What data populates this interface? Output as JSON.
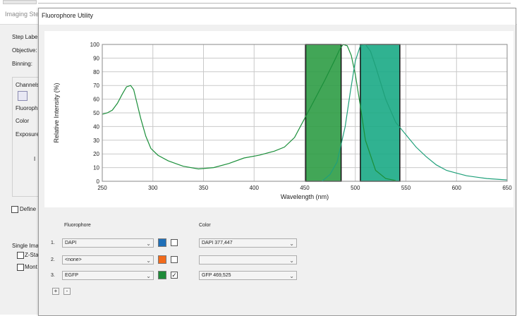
{
  "background_window": {
    "title": "Imaging Ste",
    "labels": [
      "Step Label",
      "Objective:",
      "Binning:",
      "Channels",
      "Fluoroph",
      "Color",
      "Exposure",
      "I",
      "Define I",
      "Single Ima",
      "Z-Sta",
      "Mont"
    ]
  },
  "dialog": {
    "title": "Fluorophore Utility"
  },
  "chart_data": {
    "type": "line",
    "xlabel": "Wavelength (nm)",
    "ylabel": "Relative Intensity (%)",
    "xlim": [
      250,
      650
    ],
    "ylim": [
      0,
      100
    ],
    "x_ticks": [
      250,
      300,
      350,
      400,
      450,
      500,
      550,
      600,
      650
    ],
    "y_ticks": [
      0,
      10,
      20,
      30,
      40,
      50,
      60,
      70,
      80,
      90,
      100
    ],
    "grid": true,
    "series": [
      {
        "color": "#1b8f3a",
        "x": [
          250,
          255,
          260,
          265,
          270,
          274,
          278,
          281,
          284,
          288,
          293,
          298,
          305,
          315,
          330,
          345,
          360,
          375,
          390,
          405,
          420,
          430,
          440,
          450,
          460,
          470,
          480,
          485,
          488,
          492,
          496,
          500,
          505,
          510,
          520,
          530,
          540
        ],
        "y": [
          49,
          50,
          52,
          57,
          64,
          69,
          70,
          67,
          58,
          46,
          33,
          24,
          19,
          15,
          11,
          9,
          10,
          13,
          17,
          19,
          22,
          25,
          32,
          46,
          60,
          74,
          89,
          97,
          100,
          99,
          92,
          78,
          55,
          30,
          8,
          2,
          0.5
        ]
      },
      {
        "color": "#1fa07a",
        "x": [
          467,
          475,
          482,
          490,
          495,
          500,
          505,
          510,
          515,
          520,
          530,
          540,
          550,
          560,
          570,
          580,
          590,
          600,
          610,
          620,
          630,
          640,
          650
        ],
        "y": [
          0,
          5,
          14,
          40,
          65,
          88,
          99,
          100,
          95,
          84,
          60,
          43,
          34,
          25,
          18,
          12,
          8,
          6,
          4,
          3,
          2,
          1.5,
          1
        ]
      }
    ],
    "bands": [
      {
        "from": 451,
        "to": 486,
        "color": "#2e9c45"
      },
      {
        "from": 505,
        "to": 544,
        "color": "#1aaa85"
      }
    ]
  },
  "panel": {
    "fluorophore_header": "Fluorophore",
    "color_header": "Color",
    "rows": [
      {
        "num": "1.",
        "fluor": "DAPI",
        "swatch": "#1f6fb8",
        "checked": "",
        "color": "DAPI 377,447"
      },
      {
        "num": "2.",
        "fluor": "<none>",
        "swatch": "#f26a1b",
        "checked": "",
        "color": ""
      },
      {
        "num": "3.",
        "fluor": "EGFP",
        "swatch": "#1e8a38",
        "checked": "✓",
        "color": "GFP 469,525"
      }
    ],
    "add_label": "+",
    "remove_label": "-",
    "dropdown_glyph": "⌄"
  }
}
